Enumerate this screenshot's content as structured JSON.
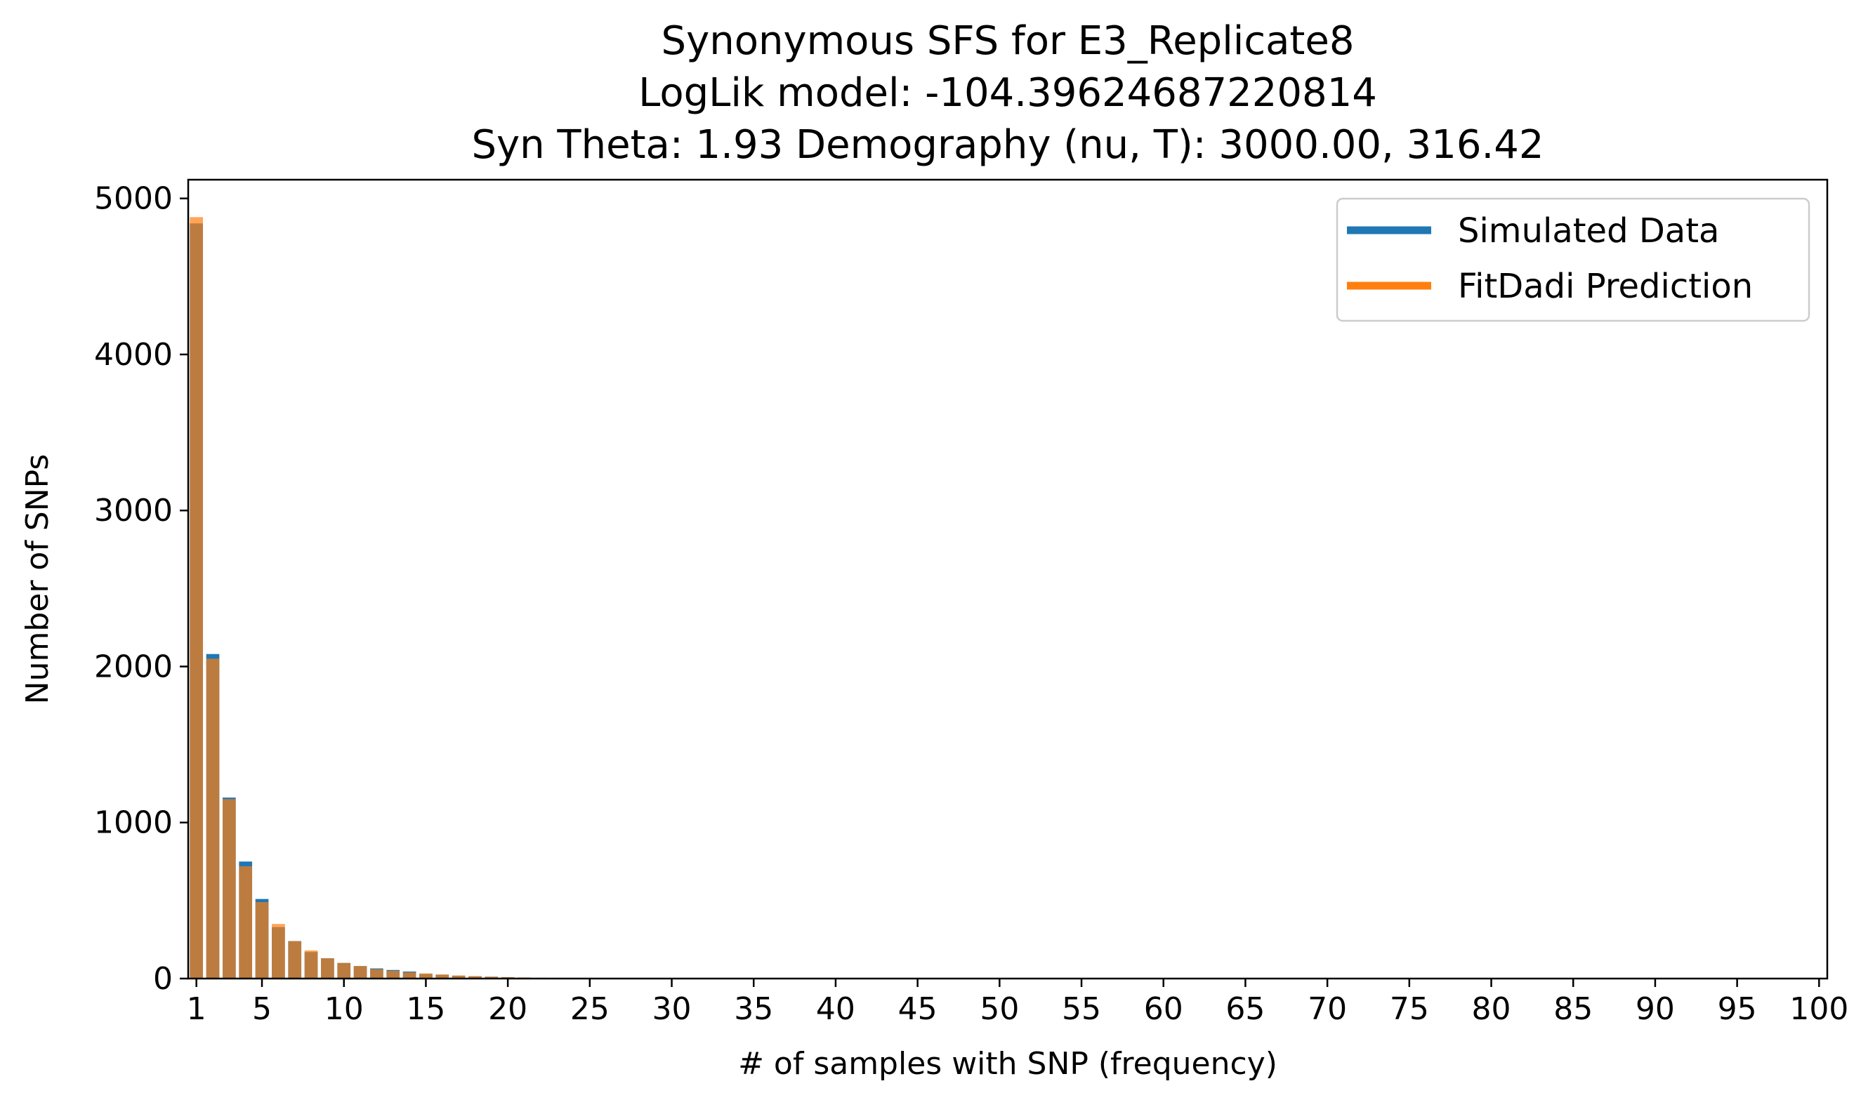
{
  "chart_data": {
    "type": "bar",
    "title_lines": [
      "Synonymous SFS for E3_Replicate8",
      "LogLik model: -104.39624687220814",
      "Syn Theta: 1.93 Demography (nu, T): 3000.00, 316.42"
    ],
    "xlabel": "# of samples with SNP (frequency)",
    "ylabel": "Number of SNPs",
    "xlim": [
      0.5,
      100.5
    ],
    "ylim": [
      0,
      5120
    ],
    "xticks": [
      1,
      5,
      10,
      15,
      20,
      25,
      30,
      35,
      40,
      45,
      50,
      55,
      60,
      65,
      70,
      75,
      80,
      85,
      90,
      95,
      100
    ],
    "yticks": [
      0,
      1000,
      2000,
      3000,
      4000,
      5000
    ],
    "grid": false,
    "legend_position": "top-right",
    "colors": {
      "simulated": "#1f77b4",
      "fitdadi": "#ff7f0e",
      "fitdadi_alpha": 0.7
    },
    "x": [
      1,
      2,
      3,
      4,
      5,
      6,
      7,
      8,
      9,
      10,
      11,
      12,
      13,
      14,
      15,
      16,
      17,
      18,
      19,
      20,
      21,
      22,
      23,
      24,
      25
    ],
    "series": [
      {
        "name": "Simulated Data",
        "values": [
          4840,
          2080,
          1160,
          750,
          510,
          330,
          240,
          170,
          130,
          100,
          80,
          65,
          55,
          45,
          30,
          25,
          18,
          14,
          12,
          9,
          6,
          4,
          3,
          2,
          1
        ]
      },
      {
        "name": "FitDadi Prediction",
        "values": [
          4880,
          2050,
          1150,
          720,
          490,
          350,
          240,
          180,
          130,
          100,
          80,
          60,
          50,
          40,
          33,
          26,
          20,
          16,
          12,
          9,
          7,
          5,
          3,
          2,
          1
        ]
      }
    ]
  }
}
